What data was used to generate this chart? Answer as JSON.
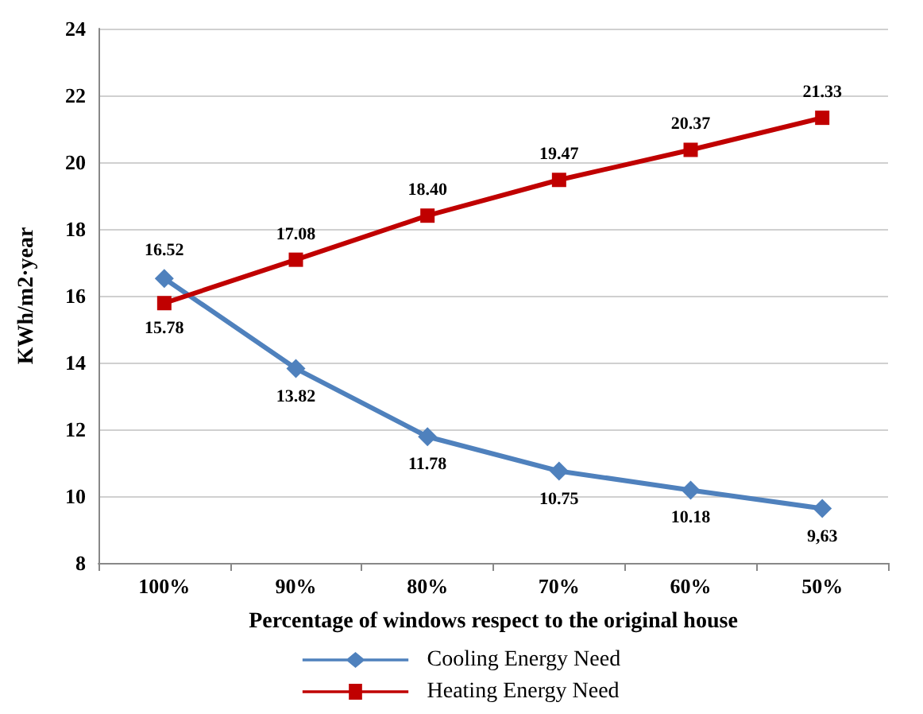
{
  "chart_data": {
    "type": "line",
    "xlabel": "Percentage of windows respect to the original house",
    "ylabel": "KWh/m2·year",
    "categories": [
      "100%",
      "90%",
      "80%",
      "70%",
      "60%",
      "50%"
    ],
    "series": [
      {
        "name": "Cooling Energy Need",
        "color": "#4f81bd",
        "marker": "diamond",
        "values": [
          16.52,
          13.82,
          11.78,
          10.75,
          10.18,
          9.63
        ],
        "value_labels": [
          "16.52",
          "13.82",
          "11.78",
          "10.75",
          "10.18",
          "9,63"
        ]
      },
      {
        "name": "Heating Energy Need",
        "color": "#c00000",
        "marker": "square",
        "values": [
          15.78,
          17.08,
          18.4,
          19.47,
          20.37,
          21.33
        ],
        "value_labels": [
          "15.78",
          "17.08",
          "18.40",
          "19.47",
          "20.37",
          "21.33"
        ]
      }
    ],
    "ylim": [
      8,
      24
    ],
    "yticks": [
      8,
      10,
      12,
      14,
      16,
      18,
      20,
      22,
      24
    ],
    "grid": "y",
    "legend": "bottom",
    "line_style": "solid"
  }
}
